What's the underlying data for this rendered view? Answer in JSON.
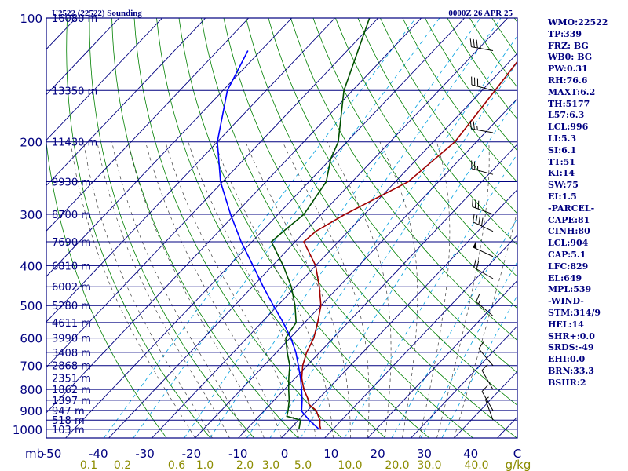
{
  "title_left": "U2522 (22522) Sounding",
  "title_right": "0000Z 26 APR 25",
  "colors": {
    "frame": "#000080",
    "isobar": "#000080",
    "isotherm": "#000080",
    "dry_adiabat": "#008000",
    "moist_adiabat": "#404040",
    "mixing_ratio": "#00a0e0",
    "temperature": "#a00000",
    "dewpoint": "#005000",
    "parcel": "#0000ff",
    "axis_text": "#000080",
    "mixing_text": "#8c8c00",
    "height_text": "#000080"
  },
  "indices": [
    "WMO:22522",
    "TP:339",
    "FRZ: BG",
    "WB0: BG",
    "PW:0.31",
    "RH:76.6",
    "MAXT:6.2",
    "TH:5177",
    "L57:6.3",
    "LCL:996",
    "LI:5.3",
    "SI:6.1",
    "TT:51",
    "KI:14",
    "SW:75",
    "EI:1.5",
    "-PARCEL-",
    "CAPE:81",
    "CINH:80",
    "LCL:904",
    "CAP:5.1",
    "LFC:829",
    "EL:649",
    "MPL:539",
    "-WIND-",
    "STM:314/9",
    "HEL:14",
    "SHR+:0.0",
    "SRDS:-49",
    "EHI:0.0",
    "BRN:33.3",
    "BSHR:2"
  ],
  "chart_data": {
    "type": "line",
    "subtype": "skew-t log-p",
    "title": "U2522 (22522) Sounding",
    "valid_time": "0000Z 26 APR 25",
    "yaxis": {
      "scale": "log",
      "reversed": true,
      "range": [
        1000,
        100
      ],
      "unit": "mb",
      "ticks": [
        100,
        200,
        300,
        400,
        500,
        600,
        700,
        800,
        900,
        1000
      ]
    },
    "xaxis": {
      "unit": "C",
      "range": [
        -50,
        50
      ],
      "tick_labels": [
        "-50",
        "-40",
        "-30",
        "-20",
        "-10",
        "0",
        "10",
        "20",
        "30",
        "40",
        "C"
      ],
      "ticks": [
        -50,
        -40,
        -30,
        -20,
        -10,
        0,
        10,
        20,
        30,
        40
      ]
    },
    "mixing_ratio_axis": {
      "unit": "g/kg",
      "labels": [
        "0.1",
        "0.2",
        "0.6",
        "1.0",
        "2.0",
        "3.0",
        "5.0",
        "10.0",
        "20.0",
        "30.0",
        "40.0"
      ]
    },
    "height_labels": [
      {
        "p": 100,
        "label": "16080 m"
      },
      {
        "p": 150,
        "label": "13350 m"
      },
      {
        "p": 200,
        "label": "11430 m"
      },
      {
        "p": 250,
        "label": "9930 m"
      },
      {
        "p": 300,
        "label": "8700 m"
      },
      {
        "p": 350,
        "label": "7690 m"
      },
      {
        "p": 400,
        "label": "6810 m"
      },
      {
        "p": 450,
        "label": "6002 m"
      },
      {
        "p": 500,
        "label": "5280 m"
      },
      {
        "p": 550,
        "label": "4611 m"
      },
      {
        "p": 600,
        "label": "3990 m"
      },
      {
        "p": 650,
        "label": "3408 m"
      },
      {
        "p": 700,
        "label": "2868 m"
      },
      {
        "p": 750,
        "label": "2351 m"
      },
      {
        "p": 800,
        "label": "1862 m"
      },
      {
        "p": 850,
        "label": "1397 m"
      },
      {
        "p": 900,
        "label": "947 m"
      },
      {
        "p": 950,
        "label": "518 m"
      },
      {
        "p": 1000,
        "label": "103 m"
      }
    ],
    "series": [
      {
        "key": "temperature",
        "points": [
          [
            996,
            7.0
          ],
          [
            980,
            6.2
          ],
          [
            950,
            5.0
          ],
          [
            925,
            3.5
          ],
          [
            900,
            2.0
          ],
          [
            870,
            -1.0
          ],
          [
            850,
            -2.0
          ],
          [
            800,
            -5.5
          ],
          [
            750,
            -8.5
          ],
          [
            700,
            -11.0
          ],
          [
            650,
            -13.0
          ],
          [
            600,
            -14.5
          ],
          [
            550,
            -17.0
          ],
          [
            500,
            -20.0
          ],
          [
            450,
            -24.5
          ],
          [
            400,
            -30.0
          ],
          [
            350,
            -38.0
          ],
          [
            330,
            -37.5
          ],
          [
            300,
            -34.5
          ],
          [
            250,
            -27.0
          ],
          [
            200,
            -25.0
          ],
          [
            150,
            -27.0
          ],
          [
            100,
            -30.0
          ]
        ]
      },
      {
        "key": "dewpoint",
        "points": [
          [
            996,
            2.0
          ],
          [
            980,
            1.5
          ],
          [
            950,
            0.5
          ],
          [
            930,
            -3.5
          ],
          [
            900,
            -4.5
          ],
          [
            850,
            -6.5
          ],
          [
            800,
            -9.0
          ],
          [
            750,
            -11.5
          ],
          [
            700,
            -14.0
          ],
          [
            650,
            -17.5
          ],
          [
            600,
            -21.0
          ],
          [
            550,
            -22.0
          ],
          [
            500,
            -26.0
          ],
          [
            450,
            -31.0
          ],
          [
            400,
            -37.5
          ],
          [
            350,
            -45.5
          ],
          [
            330,
            -45.0
          ],
          [
            300,
            -44.0
          ],
          [
            250,
            -46.0
          ],
          [
            220,
            -50.0
          ],
          [
            200,
            -52.0
          ],
          [
            150,
            -62.0
          ],
          [
            100,
            -72.0
          ]
        ]
      },
      {
        "key": "parcel",
        "points": [
          [
            996,
            6.5
          ],
          [
            950,
            2.5
          ],
          [
            904,
            -1.2
          ],
          [
            850,
            -3.5
          ],
          [
            800,
            -6.0
          ],
          [
            750,
            -8.8
          ],
          [
            700,
            -12.0
          ],
          [
            650,
            -15.5
          ],
          [
            600,
            -19.8
          ],
          [
            550,
            -25.0
          ],
          [
            500,
            -31.0
          ],
          [
            450,
            -37.5
          ],
          [
            400,
            -44.5
          ],
          [
            350,
            -52.5
          ],
          [
            300,
            -61.0
          ],
          [
            250,
            -70.5
          ],
          [
            200,
            -80.0
          ],
          [
            150,
            -89.0
          ],
          [
            120,
            -93.0
          ]
        ]
      }
    ],
    "wind_barbs": [
      {
        "p": 120,
        "dir": 280,
        "kt": 35
      },
      {
        "p": 150,
        "dir": 285,
        "kt": 30
      },
      {
        "p": 190,
        "dir": 280,
        "kt": 25
      },
      {
        "p": 240,
        "dir": 285,
        "kt": 25
      },
      {
        "p": 300,
        "dir": 290,
        "kt": 30
      },
      {
        "p": 330,
        "dir": 295,
        "kt": 40
      },
      {
        "p": 380,
        "dir": 295,
        "kt": 50
      },
      {
        "p": 430,
        "dir": 300,
        "kt": 20
      },
      {
        "p": 530,
        "dir": 310,
        "kt": 15
      },
      {
        "p": 700,
        "dir": 320,
        "kt": 10
      },
      {
        "p": 800,
        "dir": 330,
        "kt": 10
      },
      {
        "p": 900,
        "dir": 330,
        "kt": 10
      },
      {
        "p": 950,
        "dir": 340,
        "kt": 5
      }
    ]
  }
}
